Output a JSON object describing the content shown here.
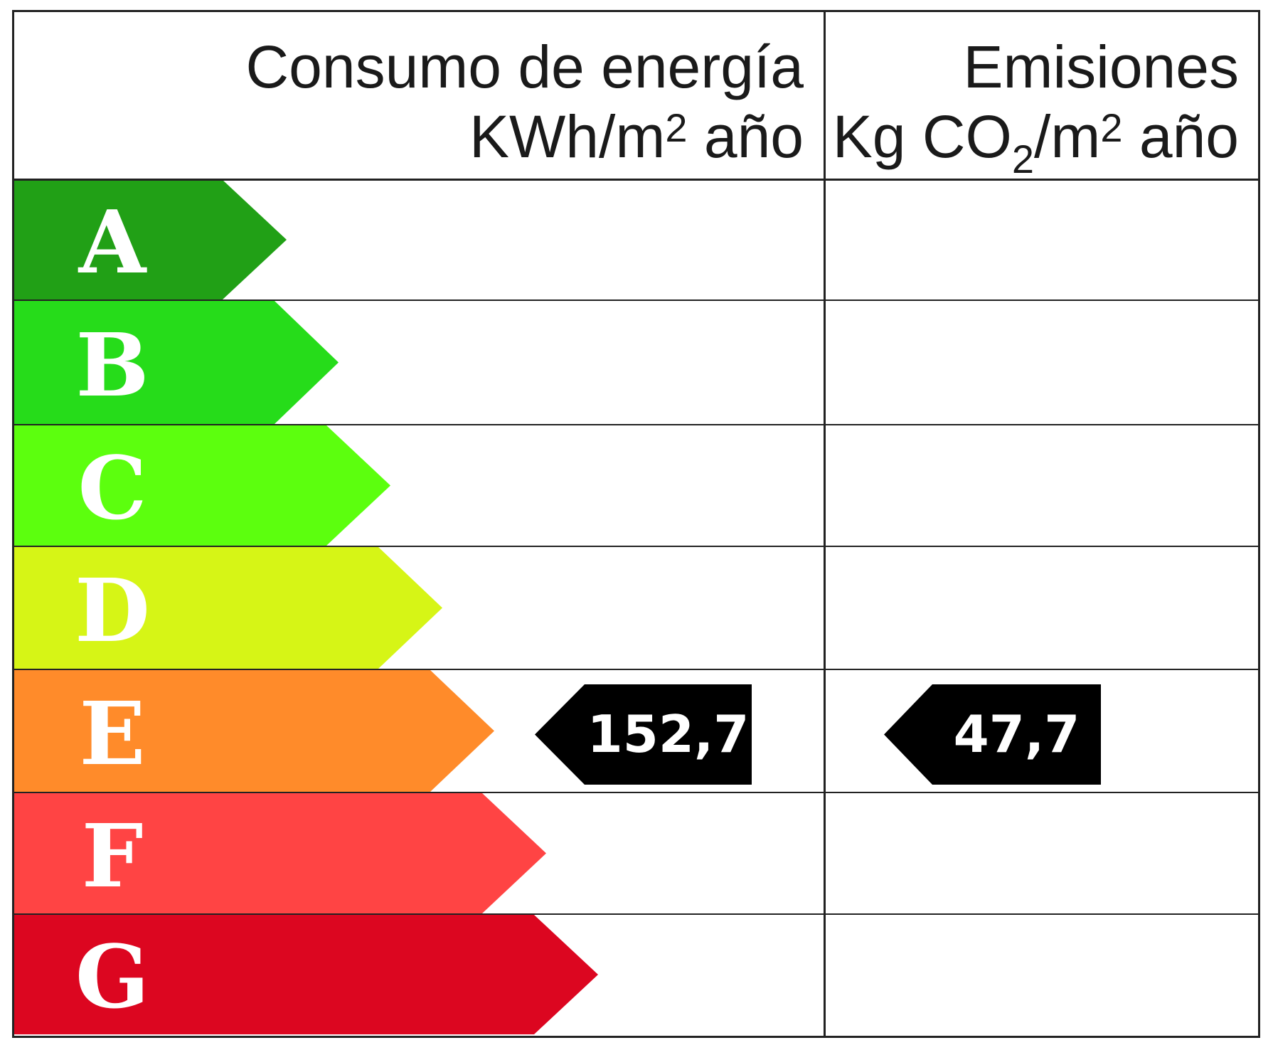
{
  "header": {
    "energy_line1": "Consumo de energía",
    "energy_line2_prefix": "KWh/m",
    "energy_line2_sup": "2",
    "energy_line2_suffix": " año",
    "emissions_line1": "Emisiones",
    "emissions_line2_prefix": "Kg CO",
    "emissions_line2_sub": "2",
    "emissions_line2_mid": "/m",
    "emissions_line2_sup": "2",
    "emissions_line2_suffix": " año"
  },
  "ratings": [
    {
      "letter": "A",
      "color": "#21a016"
    },
    {
      "letter": "B",
      "color": "#26dc1a"
    },
    {
      "letter": "C",
      "color": "#5cff0e"
    },
    {
      "letter": "D",
      "color": "#d6f516"
    },
    {
      "letter": "E",
      "color": "#ff8b2a"
    },
    {
      "letter": "F",
      "color": "#ff4444"
    },
    {
      "letter": "G",
      "color": "#dc0620"
    }
  ],
  "current": {
    "rating": "E",
    "energy_value": "152,7",
    "emissions_value": "47,7"
  }
}
